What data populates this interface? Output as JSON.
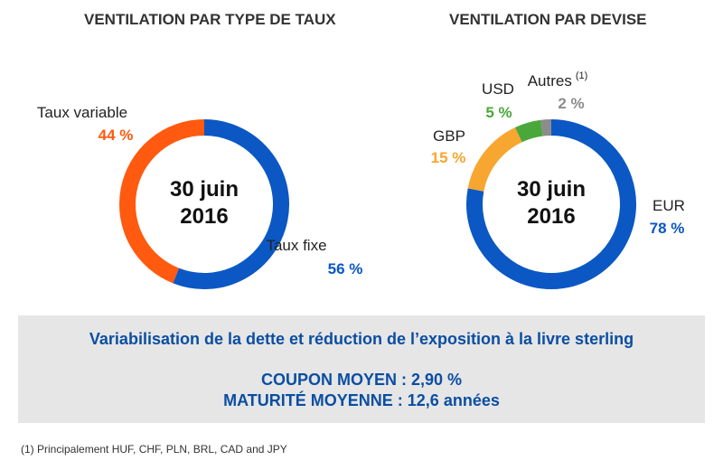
{
  "chart_data": [
    {
      "type": "pie",
      "title": "VENTILATION PAR TYPE DE TAUX",
      "center_label": [
        "30 juin",
        "2016"
      ],
      "categories": [
        "Taux fixe",
        "Taux variable"
      ],
      "values": [
        56,
        44
      ],
      "value_labels": [
        "56 %",
        "44 %"
      ],
      "colors": [
        "#0b57c4",
        "#ff5a0f"
      ]
    },
    {
      "type": "pie",
      "title": "VENTILATION PAR DEVISE",
      "center_label": [
        "30 juin",
        "2016"
      ],
      "categories": [
        "EUR",
        "GBP",
        "USD",
        "Autres"
      ],
      "values": [
        78,
        15,
        5,
        2
      ],
      "value_labels": [
        "78 %",
        "15 %",
        "5 %",
        "2 %"
      ],
      "footnote_markers": [
        "",
        "",
        "",
        "(1)"
      ],
      "colors": [
        "#0b57c4",
        "#f7a630",
        "#4aa83a",
        "#8c8c8c"
      ]
    }
  ],
  "summary": {
    "headline": "Variabilisation de la dette et réduction de l’exposition à la livre sterling",
    "coupon": "COUPON MOYEN : 2,90 %",
    "maturity": "MATURITÉ MOYENNE : 12,6 années"
  },
  "footnote": "(1) Principalement HUF, CHF, PLN, BRL, CAD and JPY"
}
